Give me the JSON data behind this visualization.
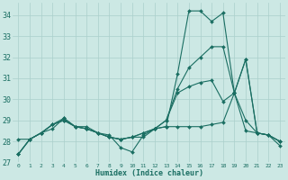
{
  "xlabel": "Humidex (Indice chaleur)",
  "background_color": "#cce8e4",
  "grid_color": "#aacfcb",
  "line_color": "#1a6e62",
  "xlim": [
    -0.5,
    23.5
  ],
  "ylim": [
    27,
    34.6
  ],
  "yticks": [
    27,
    28,
    29,
    30,
    31,
    32,
    33,
    34
  ],
  "xticks": [
    0,
    1,
    2,
    3,
    4,
    5,
    6,
    7,
    8,
    9,
    10,
    11,
    12,
    13,
    14,
    15,
    16,
    17,
    18,
    19,
    20,
    21,
    22,
    23
  ],
  "series": [
    [
      27.4,
      28.1,
      28.4,
      28.6,
      29.1,
      28.7,
      28.7,
      28.4,
      28.3,
      27.7,
      27.5,
      28.3,
      28.6,
      28.7,
      31.2,
      34.2,
      34.2,
      33.7,
      34.1,
      30.3,
      31.9,
      28.4,
      28.3,
      27.8
    ],
    [
      28.1,
      28.1,
      28.4,
      28.8,
      29.0,
      28.7,
      28.6,
      28.4,
      28.2,
      28.1,
      28.2,
      28.2,
      28.6,
      28.7,
      28.7,
      28.7,
      28.7,
      28.8,
      28.9,
      30.3,
      28.5,
      28.4,
      28.3,
      28.0
    ],
    [
      27.4,
      28.1,
      28.4,
      28.8,
      29.0,
      28.7,
      28.6,
      28.4,
      28.2,
      28.1,
      28.2,
      28.4,
      28.6,
      29.0,
      30.3,
      30.6,
      30.8,
      30.9,
      29.9,
      30.3,
      29.0,
      28.4,
      28.3,
      28.0
    ],
    [
      27.4,
      28.1,
      28.4,
      28.8,
      29.1,
      28.7,
      28.6,
      28.4,
      28.2,
      28.1,
      28.2,
      28.4,
      28.6,
      29.0,
      30.5,
      31.5,
      32.0,
      32.5,
      32.5,
      30.3,
      31.9,
      28.4,
      28.3,
      28.0
    ]
  ],
  "xlabel_fontsize": 6.0,
  "xtick_fontsize": 4.5,
  "ytick_fontsize": 6.0,
  "linewidth": 0.8,
  "markersize": 2.0
}
